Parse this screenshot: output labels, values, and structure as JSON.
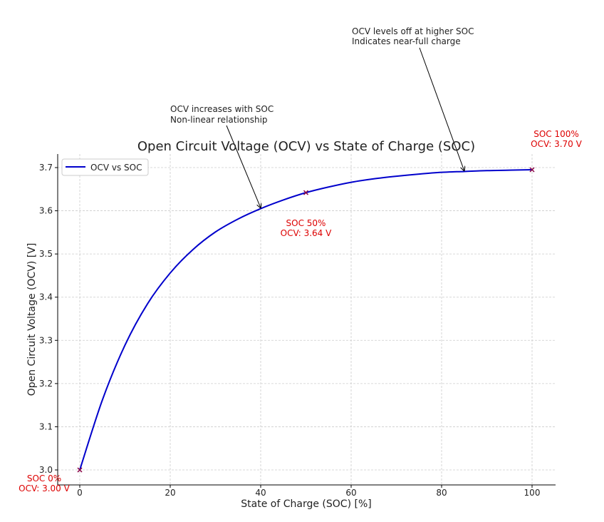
{
  "chart_data": {
    "type": "line",
    "title": "Open Circuit Voltage (OCV) vs State of Charge (SOC)",
    "xlabel": "State of Charge (SOC) [%]",
    "ylabel": "Open Circuit Voltage (OCV) [V]",
    "xlim": [
      0,
      100
    ],
    "ylim": [
      3.0,
      3.7
    ],
    "xticks": [
      0,
      20,
      40,
      60,
      80,
      100
    ],
    "xtick_labels": [
      "0",
      "20",
      "40",
      "60",
      "80",
      "100"
    ],
    "yticks": [
      3.0,
      3.1,
      3.2,
      3.3,
      3.4,
      3.5,
      3.6,
      3.7
    ],
    "ytick_labels": [
      "3.0",
      "3.1",
      "3.2",
      "3.3",
      "3.4",
      "3.5",
      "3.6",
      "3.7"
    ],
    "grid": true,
    "legend": {
      "location": "upper-left",
      "entries": [
        "OCV vs SOC"
      ]
    },
    "series": [
      {
        "name": "OCV vs SOC",
        "color": "#0000cc",
        "x": [
          0,
          5,
          10,
          15,
          20,
          25,
          30,
          35,
          40,
          45,
          50,
          55,
          60,
          65,
          70,
          75,
          80,
          85,
          90,
          95,
          100
        ],
        "y": [
          3.0,
          3.162,
          3.289,
          3.385,
          3.456,
          3.51,
          3.551,
          3.581,
          3.605,
          3.625,
          3.642,
          3.655,
          3.666,
          3.674,
          3.68,
          3.685,
          3.689,
          3.691,
          3.693,
          3.694,
          3.695
        ]
      }
    ],
    "markers": [
      {
        "x": 0,
        "y": 3.0,
        "label_line1": "SOC 0%",
        "label_line2": "OCV: 3.00 V"
      },
      {
        "x": 50,
        "y": 3.642,
        "label_line1": "SOC 50%",
        "label_line2": "OCV: 3.64 V"
      },
      {
        "x": 100,
        "y": 3.695,
        "label_line1": "SOC 100%",
        "label_line2": "OCV: 3.70 V"
      }
    ],
    "annotations": [
      {
        "line1": "OCV increases with SOC",
        "line2": "Non-linear relationship",
        "target_x": 40,
        "target_y": 3.605
      },
      {
        "line1": "OCV levels off at higher SOC",
        "line2": "Indicates near-full charge",
        "target_x": 85,
        "target_y": 3.691
      }
    ],
    "colors": {
      "line": "#0000cc",
      "marker": "#880044",
      "marker_label": "#dd0000",
      "grid": "#cccccc",
      "axis": "#000000"
    }
  }
}
